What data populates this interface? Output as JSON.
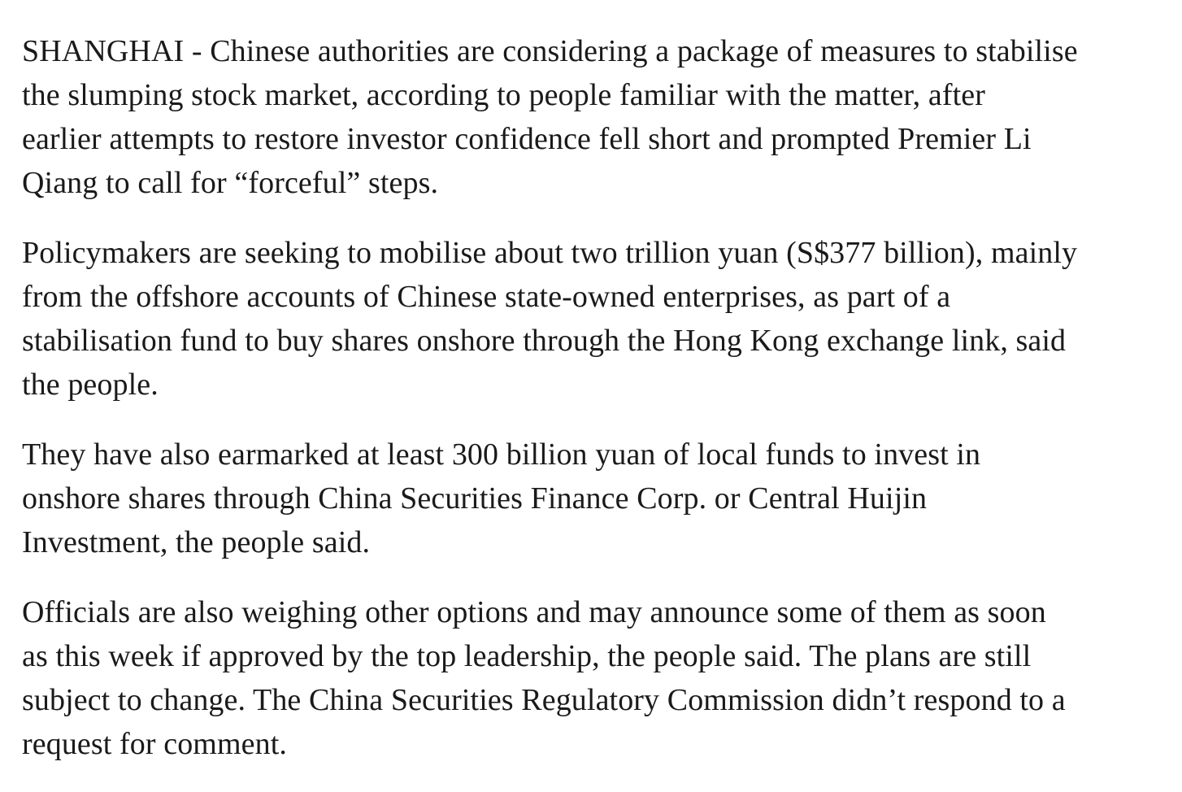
{
  "article": {
    "paragraphs": [
      {
        "lines": [
          "SHANGHAI - Chinese authorities are considering a package of measures to stabilise",
          "the slumping stock market, according to people familiar with the matter, after",
          "earlier attempts to restore investor confidence fell short and prompted Premier Li",
          "Qiang to call for “forceful” steps."
        ]
      },
      {
        "lines": [
          "Policymakers are seeking to mobilise about two trillion yuan (S$377 billion), mainly",
          "from the offshore accounts of Chinese state-owned enterprises, as part of a",
          "stabilisation fund to buy shares onshore through the Hong Kong exchange link, said",
          "the people."
        ]
      },
      {
        "lines": [
          "They have also earmarked at least 300 billion yuan of local funds to invest in",
          "onshore shares through China Securities Finance Corp. or Central Huijin",
          "Investment, the people said."
        ]
      },
      {
        "lines": [
          "Officials are also weighing other options and may announce some of them as soon",
          "as this week if approved by the top leadership, the people said. The plans are still",
          "subject to change. The China Securities Regulatory Commission didn’t respond to a",
          "request for comment."
        ]
      }
    ]
  }
}
